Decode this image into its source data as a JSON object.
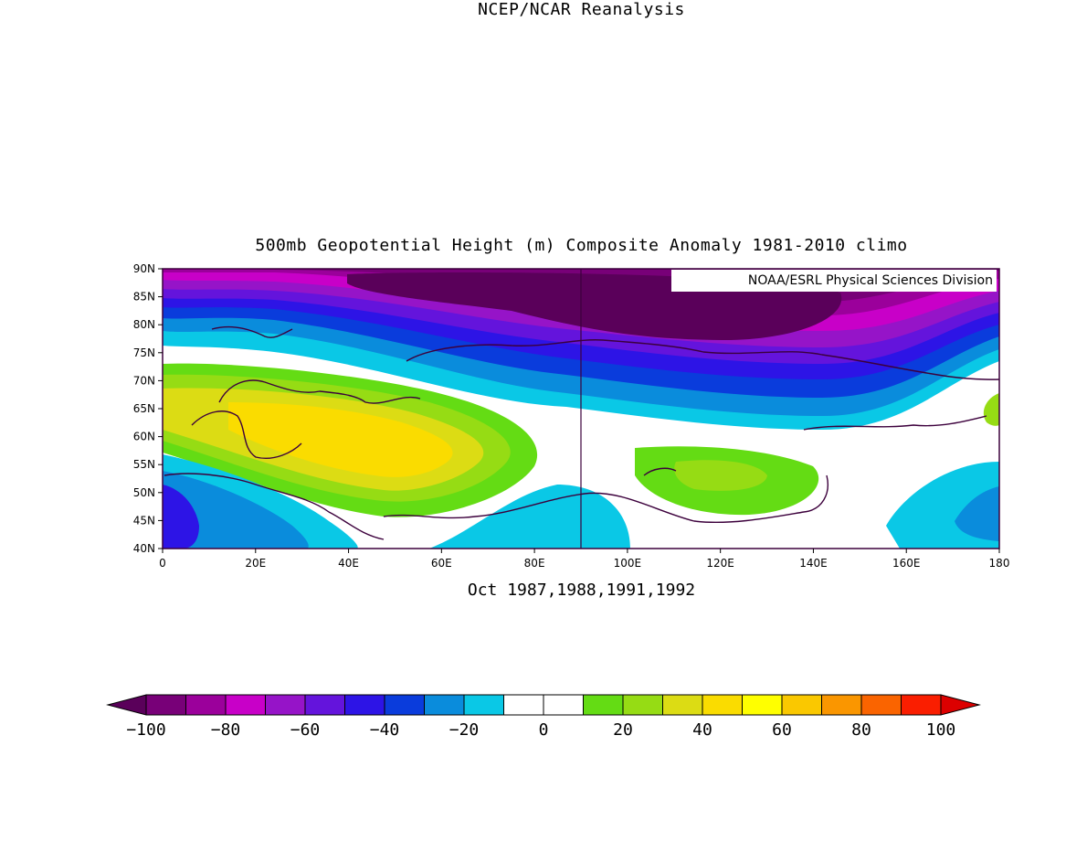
{
  "title_line1": "NCEP/NCAR Reanalysis",
  "title_line2": "500mb Geopotential Height (m) Composite Anomaly 1981-2010 climo",
  "subtitle": "Oct 1987,1988,1991,1992",
  "credit": "NOAA/ESRL Physical Sciences Division",
  "map": {
    "lon_range": [
      0,
      180
    ],
    "lat_range": [
      40,
      90
    ],
    "lat_ticks": [
      "90N",
      "85N",
      "80N",
      "75N",
      "70N",
      "65N",
      "60N",
      "55N",
      "50N",
      "45N",
      "40N"
    ],
    "lon_ticks": [
      "0",
      "20E",
      "40E",
      "60E",
      "80E",
      "100E",
      "120E",
      "140E",
      "160E",
      "180"
    ],
    "meridian_line_lon": 90
  },
  "colorbar": {
    "labels": [
      "-100",
      "-80",
      "-60",
      "-40",
      "-20",
      "0",
      "20",
      "40",
      "60",
      "80",
      "100"
    ],
    "colors": [
      "#5a005a",
      "#780078",
      "#9b009b",
      "#c800c8",
      "#9614c8",
      "#6414dc",
      "#2d14e6",
      "#0a3cdc",
      "#0a8cdc",
      "#0ac8e6",
      "#ffffff",
      "#ffffff",
      "#64dc14",
      "#96dc14",
      "#dcdc14",
      "#fadc00",
      "#ffff00",
      "#fac800",
      "#fa9600",
      "#fa6400",
      "#fa1e00",
      "#dc0000"
    ]
  }
}
